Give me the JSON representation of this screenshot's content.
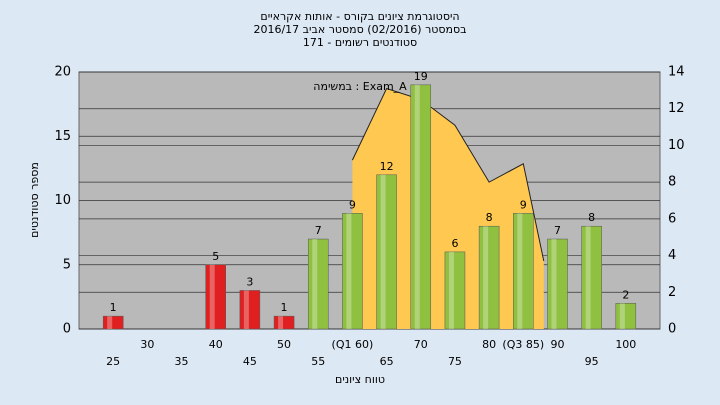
{
  "chart_data": {
    "type": "bar",
    "title": [
      "היסטוגרמת ציונים בקורס - אותות אקראיים",
      "בסמסטר (02/2016) סמסטר אביב 2016/17",
      "סטודנטים רשומים - 171"
    ],
    "annotation": "במשימה : Exam_A",
    "x_label": "טווח ציונים",
    "y_label": "מספר סטודנטים",
    "categories": [
      "25",
      "30",
      "35",
      "40",
      "45",
      "50",
      "55",
      "(Q1 60)",
      "65",
      "70",
      "75",
      "80",
      "(Q3 85)",
      "90",
      "95",
      "100"
    ],
    "values": [
      1,
      0,
      0,
      5,
      3,
      1,
      7,
      9,
      12,
      19,
      6,
      8,
      9,
      7,
      8,
      2
    ],
    "colors": [
      "#e02020",
      "#e02020",
      "#e02020",
      "#e02020",
      "#e02020",
      "#e02020",
      "#8fc040",
      "#8fc040",
      "#8fc040",
      "#8fc040",
      "#8fc040",
      "#8fc040",
      "#8fc040",
      "#8fc040",
      "#8fc040",
      "#8fc040"
    ],
    "ylim": [
      0,
      20
    ],
    "yticks": [
      0,
      5,
      10,
      15,
      20
    ],
    "y2lim": [
      0,
      14
    ],
    "y2ticks": [
      0,
      2,
      4,
      6,
      8,
      10,
      12,
      14
    ],
    "xlim": [
      20,
      105
    ],
    "grid": true,
    "series": [
      {
        "type": "area",
        "axis": "y2",
        "color": "#ffc850",
        "x": [
          60,
          65,
          70,
          75,
          80,
          85,
          88
        ],
        "values": [
          9.2,
          13.1,
          12.5,
          11.1,
          8,
          9,
          3.7
        ]
      }
    ]
  }
}
